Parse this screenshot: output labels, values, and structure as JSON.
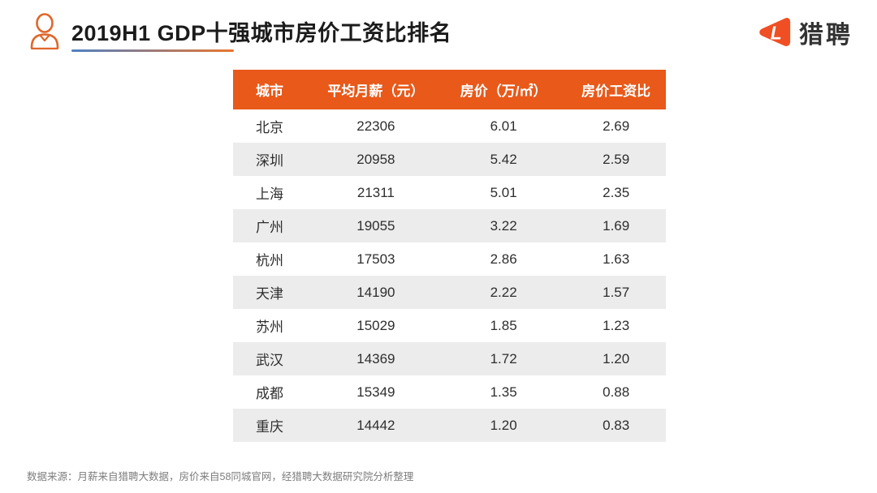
{
  "page": {
    "title": "2019H1 GDP十强城市房价工资比排名",
    "footer": "数据来源：月薪来自猎聘大数据，房价来自58同城官网，经猎聘大数据研究院分析整理"
  },
  "logo": {
    "brand": "猎聘",
    "icon": "liepin-play-l-icon"
  },
  "colors": {
    "table_header_bg": "#E8591A",
    "row_alt_bg": "#ECECEC",
    "logo_orange": "#F04E23",
    "underline_gradient_start": "#4F81C2",
    "underline_gradient_end": "#E8762F",
    "title_text": "#1B1B1B",
    "footer_text": "#7D7D7D"
  },
  "chart_data": {
    "type": "table",
    "title": "2019H1 GDP十强城市房价工资比排名",
    "columns": [
      "城市",
      "平均月薪（元）",
      "房价（万/㎡）",
      "房价工资比"
    ],
    "rows": [
      [
        "北京",
        "22306",
        "6.01",
        "2.69"
      ],
      [
        "深圳",
        "20958",
        "5.42",
        "2.59"
      ],
      [
        "上海",
        "21311",
        "5.01",
        "2.35"
      ],
      [
        "广州",
        "19055",
        "3.22",
        "1.69"
      ],
      [
        "杭州",
        "17503",
        "2.86",
        "1.63"
      ],
      [
        "天津",
        "14190",
        "2.22",
        "1.57"
      ],
      [
        "苏州",
        "15029",
        "1.85",
        "1.23"
      ],
      [
        "武汉",
        "14369",
        "1.72",
        "1.20"
      ],
      [
        "成都",
        "15349",
        "1.35",
        "0.88"
      ],
      [
        "重庆",
        "14442",
        "1.20",
        "0.83"
      ]
    ],
    "layout": {
      "header_style": "orange-bg-white-text",
      "row_striping": "white-and-light-gray-alternating",
      "first_column_align": "left",
      "other_columns_align": "center"
    }
  }
}
